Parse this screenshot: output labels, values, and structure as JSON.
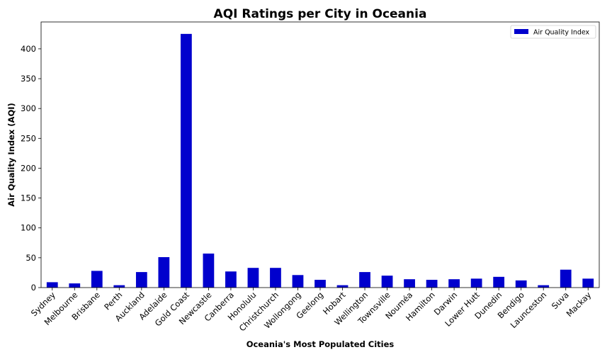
{
  "chart_data": {
    "type": "bar",
    "title": "AQI Ratings per City in Oceania",
    "xlabel": "Oceania's Most Populated Cities",
    "ylabel": "Air Quality Index (AQI)",
    "ylim": [
      0,
      445
    ],
    "yticks": [
      0,
      50,
      100,
      150,
      200,
      250,
      300,
      350,
      400
    ],
    "grid": false,
    "legend_position": "top-right",
    "bar_color": "#0000cd",
    "categories": [
      "Sydney",
      "Melbourne",
      "Brisbane",
      "Perth",
      "Auckland",
      "Adelaide",
      "Gold Coast",
      "Newcastle",
      "Canberra",
      "Honolulu",
      "Christchurch",
      "Wollongong",
      "Geelong",
      "Hobart",
      "Wellington",
      "Townsville",
      "Nouméa",
      "Hamilton",
      "Darwin",
      "Lower Hutt",
      "Dunedin",
      "Bendigo",
      "Launceston",
      "Suva",
      "Mackay"
    ],
    "series": [
      {
        "name": "Air Quality Index",
        "values": [
          9,
          7,
          28,
          4,
          26,
          51,
          425,
          57,
          27,
          33,
          33,
          21,
          13,
          4,
          26,
          20,
          14,
          13,
          14,
          15,
          18,
          12,
          4,
          30,
          15
        ]
      }
    ]
  }
}
